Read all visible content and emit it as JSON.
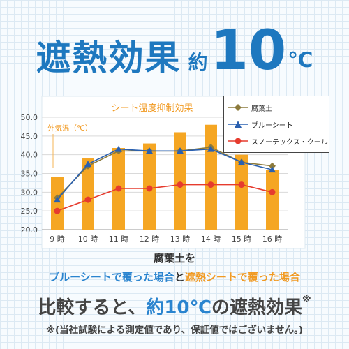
{
  "headline": {
    "main": "遮熱効果",
    "approx": "約",
    "number": "10",
    "unit": "℃"
  },
  "chart_data": {
    "type": "bar+line",
    "title": "シート温度抑制効果",
    "categories": [
      "9 時",
      "10 時",
      "11 時",
      "12 時",
      "13 時",
      "14 時",
      "15 時",
      "16 時"
    ],
    "bar_series": {
      "name": "外気温（℃）",
      "values": [
        34,
        39,
        41.8,
        43,
        46,
        48,
        40,
        36
      ],
      "color": "#f5a623"
    },
    "line_series": [
      {
        "name": "腐葉土",
        "values": [
          28.5,
          37,
          41,
          41,
          41,
          42,
          38,
          37
        ],
        "color": "#8c7a3b",
        "marker": "diamond"
      },
      {
        "name": "ブルーシート",
        "values": [
          28,
          37.5,
          41.5,
          41,
          41,
          41.5,
          38,
          36
        ],
        "color": "#2a60b0",
        "marker": "triangle"
      },
      {
        "name": "スノーテックス・クール",
        "values": [
          25,
          28,
          31,
          31,
          32,
          32,
          32,
          30
        ],
        "color": "#e63b2e",
        "marker": "circle"
      }
    ],
    "annotation": "外気温（℃）",
    "ylim": [
      20,
      50
    ],
    "yticks": [
      "20.0",
      "25.0",
      "30.0",
      "35.0",
      "40.0",
      "45.0",
      "50.0"
    ],
    "grid": true,
    "legend_position": "top-right"
  },
  "caption": {
    "line1": "腐葉土を",
    "line2_blue": "ブルーシートで覆った場合",
    "line2_join": "と",
    "line2_orange": "遮熱シートで覆った場合",
    "line3_pre": "比較すると、",
    "line3_hl": "約10℃",
    "line3_post": "の遮熱効果",
    "line3_mark": "※",
    "line4": "※(当社試験による測定値であり、保証値ではございません。)"
  }
}
